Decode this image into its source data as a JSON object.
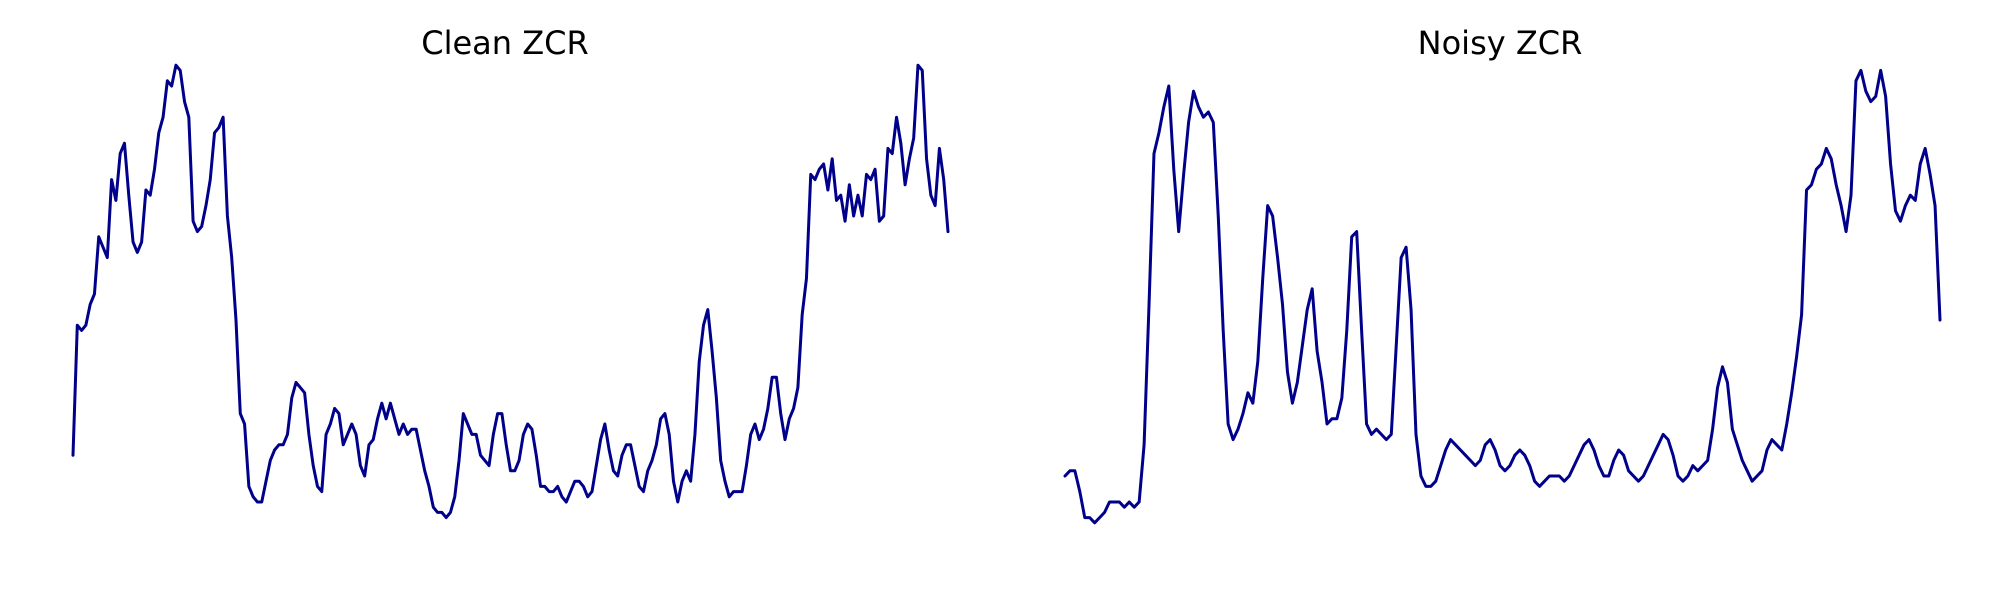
{
  "chart_data": [
    {
      "type": "line",
      "title": "Clean ZCR",
      "xlabel": "",
      "ylabel": "",
      "axes": "off",
      "grid": false,
      "color": "#00008B",
      "ylim": [
        0,
        1
      ],
      "series": [
        {
          "values": [
            0.24,
            0.49,
            0.48,
            0.49,
            0.53,
            0.55,
            0.66,
            0.64,
            0.62,
            0.77,
            0.73,
            0.82,
            0.84,
            0.74,
            0.65,
            0.63,
            0.65,
            0.75,
            0.74,
            0.79,
            0.86,
            0.89,
            0.96,
            0.95,
            0.99,
            0.98,
            0.92,
            0.89,
            0.69,
            0.67,
            0.68,
            0.72,
            0.77,
            0.86,
            0.87,
            0.89,
            0.7,
            0.62,
            0.5,
            0.32,
            0.3,
            0.18,
            0.16,
            0.15,
            0.15,
            0.19,
            0.23,
            0.25,
            0.26,
            0.26,
            0.28,
            0.35,
            0.38,
            0.37,
            0.36,
            0.28,
            0.22,
            0.18,
            0.17,
            0.28,
            0.3,
            0.33,
            0.32,
            0.26,
            0.28,
            0.3,
            0.28,
            0.22,
            0.2,
            0.26,
            0.27,
            0.31,
            0.34,
            0.31,
            0.34,
            0.31,
            0.28,
            0.3,
            0.28,
            0.29,
            0.29,
            0.25,
            0.21,
            0.18,
            0.14,
            0.13,
            0.13,
            0.12,
            0.13,
            0.16,
            0.23,
            0.32,
            0.3,
            0.28,
            0.28,
            0.24,
            0.23,
            0.22,
            0.28,
            0.32,
            0.32,
            0.26,
            0.21,
            0.21,
            0.23,
            0.28,
            0.3,
            0.29,
            0.24,
            0.18,
            0.18,
            0.17,
            0.17,
            0.18,
            0.16,
            0.15,
            0.17,
            0.19,
            0.19,
            0.18,
            0.16,
            0.17,
            0.22,
            0.27,
            0.3,
            0.25,
            0.21,
            0.2,
            0.24,
            0.26,
            0.26,
            0.22,
            0.18,
            0.17,
            0.21,
            0.23,
            0.26,
            0.31,
            0.32,
            0.28,
            0.19,
            0.15,
            0.19,
            0.21,
            0.19,
            0.28,
            0.42,
            0.49,
            0.52,
            0.44,
            0.35,
            0.23,
            0.19,
            0.16,
            0.17,
            0.17,
            0.17,
            0.22,
            0.28,
            0.3,
            0.27,
            0.29,
            0.33,
            0.39,
            0.39,
            0.32,
            0.27,
            0.31,
            0.33,
            0.37,
            0.51,
            0.58,
            0.78,
            0.77,
            0.79,
            0.8,
            0.75,
            0.81,
            0.73,
            0.74,
            0.69,
            0.76,
            0.7,
            0.74,
            0.7,
            0.78,
            0.77,
            0.79,
            0.69,
            0.7,
            0.83,
            0.82,
            0.89,
            0.84,
            0.76,
            0.81,
            0.85,
            0.99,
            0.98,
            0.81,
            0.74,
            0.72,
            0.83,
            0.77,
            0.67
          ]
        }
      ]
    },
    {
      "type": "line",
      "title": "Noisy ZCR",
      "xlabel": "",
      "ylabel": "",
      "axes": "off",
      "grid": false,
      "color": "#00008B",
      "ylim": [
        0,
        1
      ],
      "series": [
        {
          "values": [
            0.2,
            0.21,
            0.21,
            0.17,
            0.12,
            0.12,
            0.11,
            0.12,
            0.13,
            0.15,
            0.15,
            0.15,
            0.14,
            0.15,
            0.14,
            0.15,
            0.26,
            0.53,
            0.82,
            0.86,
            0.91,
            0.95,
            0.79,
            0.67,
            0.78,
            0.88,
            0.94,
            0.91,
            0.89,
            0.9,
            0.88,
            0.7,
            0.48,
            0.3,
            0.27,
            0.29,
            0.32,
            0.36,
            0.34,
            0.42,
            0.58,
            0.72,
            0.7,
            0.62,
            0.53,
            0.4,
            0.34,
            0.38,
            0.45,
            0.52,
            0.56,
            0.44,
            0.38,
            0.3,
            0.31,
            0.31,
            0.35,
            0.48,
            0.66,
            0.67,
            0.48,
            0.3,
            0.28,
            0.29,
            0.28,
            0.27,
            0.28,
            0.45,
            0.62,
            0.64,
            0.52,
            0.28,
            0.2,
            0.18,
            0.18,
            0.19,
            0.22,
            0.25,
            0.27,
            0.26,
            0.25,
            0.24,
            0.23,
            0.22,
            0.23,
            0.26,
            0.27,
            0.25,
            0.22,
            0.21,
            0.22,
            0.24,
            0.25,
            0.24,
            0.22,
            0.19,
            0.18,
            0.19,
            0.2,
            0.2,
            0.2,
            0.19,
            0.2,
            0.22,
            0.24,
            0.26,
            0.27,
            0.25,
            0.22,
            0.2,
            0.2,
            0.23,
            0.25,
            0.24,
            0.21,
            0.2,
            0.19,
            0.2,
            0.22,
            0.24,
            0.26,
            0.28,
            0.27,
            0.24,
            0.2,
            0.19,
            0.2,
            0.22,
            0.21,
            0.22,
            0.23,
            0.29,
            0.37,
            0.41,
            0.38,
            0.29,
            0.26,
            0.23,
            0.21,
            0.19,
            0.2,
            0.21,
            0.25,
            0.27,
            0.26,
            0.25,
            0.3,
            0.36,
            0.43,
            0.51,
            0.75,
            0.76,
            0.79,
            0.8,
            0.83,
            0.81,
            0.76,
            0.72,
            0.67,
            0.74,
            0.96,
            0.98,
            0.94,
            0.92,
            0.93,
            0.98,
            0.93,
            0.8,
            0.71,
            0.69,
            0.72,
            0.74,
            0.73,
            0.8,
            0.83,
            0.78,
            0.72,
            0.5
          ]
        }
      ]
    }
  ]
}
